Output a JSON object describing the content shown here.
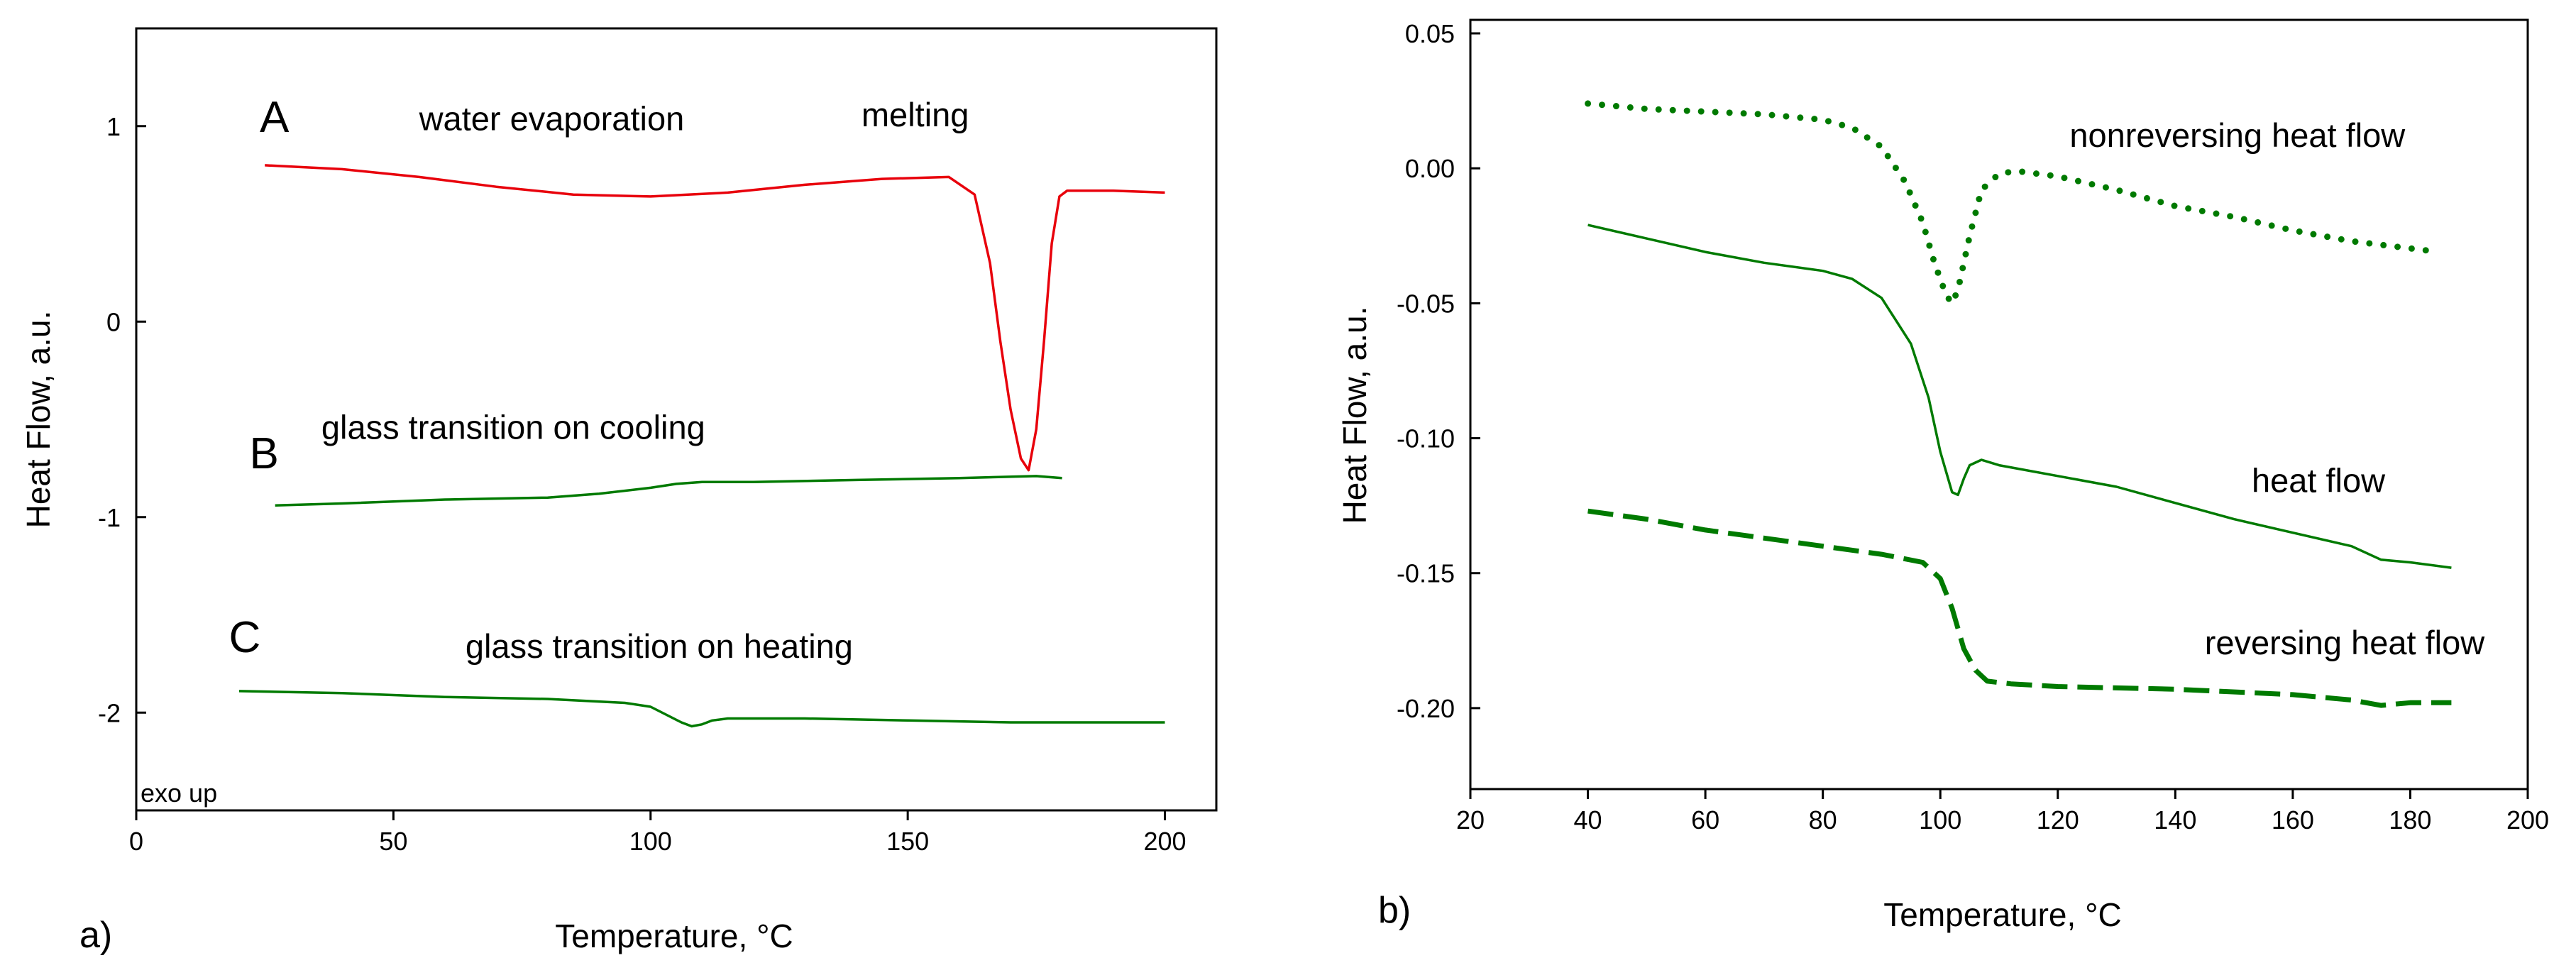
{
  "chart_data": [
    {
      "id": "a",
      "type": "line",
      "panel_label": "a)",
      "xlabel": "Temperature, °C",
      "ylabel": "Heat Flow, a.u.",
      "xlim": [
        0,
        210
      ],
      "ylim": [
        -2.5,
        1.5
      ],
      "xticks": [
        0,
        50,
        100,
        150,
        200
      ],
      "yticks": [
        1,
        0,
        -1,
        -2
      ],
      "ytick_labels": [
        "1",
        "0",
        "-1",
        "-2"
      ],
      "corner_note": "exo up",
      "series": [
        {
          "name": "A",
          "color": "#e8000b",
          "x": [
            25,
            40,
            55,
            70,
            85,
            100,
            115,
            130,
            145,
            158,
            163,
            166,
            168,
            170,
            172,
            173.5,
            175,
            176.5,
            178,
            179.5,
            181,
            190,
            200
          ],
          "y": [
            0.8,
            0.78,
            0.74,
            0.69,
            0.65,
            0.64,
            0.66,
            0.7,
            0.73,
            0.74,
            0.65,
            0.3,
            -0.1,
            -0.45,
            -0.7,
            -0.76,
            -0.55,
            -0.1,
            0.4,
            0.64,
            0.67,
            0.67,
            0.66
          ]
        },
        {
          "name": "B",
          "color": "#007a00",
          "x": [
            27,
            40,
            60,
            80,
            90,
            100,
            105,
            110,
            120,
            140,
            160,
            175,
            180
          ],
          "y": [
            -0.94,
            -0.93,
            -0.91,
            -0.9,
            -0.88,
            -0.85,
            -0.83,
            -0.82,
            -0.82,
            -0.81,
            -0.8,
            -0.79,
            -0.8
          ]
        },
        {
          "name": "C",
          "color": "#007a00",
          "x": [
            20,
            40,
            60,
            80,
            95,
            100,
            103,
            106,
            108,
            110,
            112,
            115,
            130,
            150,
            170,
            185,
            200
          ],
          "y": [
            -1.89,
            -1.9,
            -1.92,
            -1.93,
            -1.95,
            -1.97,
            -2.01,
            -2.05,
            -2.07,
            -2.06,
            -2.04,
            -2.03,
            -2.03,
            -2.04,
            -2.05,
            -2.05,
            -2.05
          ]
        }
      ],
      "annotations": [
        {
          "text": "A",
          "x": 24,
          "y": 0.97,
          "kind": "letter"
        },
        {
          "text": "B",
          "x": 22,
          "y": -0.75,
          "kind": "letter"
        },
        {
          "text": "C",
          "x": 18,
          "y": -1.69,
          "kind": "letter"
        },
        {
          "text": "water evaporation",
          "x": 55,
          "y": 0.98,
          "kind": "label"
        },
        {
          "text": "melting",
          "x": 141,
          "y": 1.0,
          "kind": "label"
        },
        {
          "text": "glass transition on cooling",
          "x": 36,
          "y": -0.6,
          "kind": "label"
        },
        {
          "text": "glass transition on heating",
          "x": 64,
          "y": -1.72,
          "kind": "label"
        }
      ]
    },
    {
      "id": "b",
      "type": "line",
      "panel_label": "b)",
      "xlabel": "Temperature, °C",
      "ylabel": "Heat Flow, a.u.",
      "xlim": [
        20,
        200
      ],
      "ylim": [
        -0.23,
        0.055
      ],
      "xticks": [
        20,
        40,
        60,
        80,
        100,
        120,
        140,
        160,
        180,
        200
      ],
      "yticks": [
        0.05,
        0.0,
        -0.05,
        -0.1,
        -0.15,
        -0.2
      ],
      "ytick_labels": [
        "0.05",
        "0.00",
        "-0.05",
        "-0.10",
        "-0.15",
        "-0.20"
      ],
      "series": [
        {
          "name": "nonreversing heat flow",
          "style": "dotted",
          "color": "#007a00",
          "x": [
            40,
            50,
            60,
            70,
            80,
            85,
            90,
            94,
            97,
            99,
            101,
            102,
            103,
            105,
            107,
            110,
            113,
            120,
            130,
            140,
            150,
            160,
            170,
            185
          ],
          "y": [
            0.024,
            0.022,
            0.021,
            0.02,
            0.018,
            0.015,
            0.008,
            -0.005,
            -0.02,
            -0.035,
            -0.047,
            -0.05,
            -0.045,
            -0.025,
            -0.008,
            -0.002,
            -0.001,
            -0.003,
            -0.008,
            -0.014,
            -0.018,
            -0.023,
            -0.027,
            -0.031
          ]
        },
        {
          "name": "heat flow",
          "style": "solid",
          "color": "#007a00",
          "x": [
            40,
            50,
            60,
            70,
            80,
            85,
            90,
            95,
            98,
            100,
            102,
            103,
            104,
            105,
            107,
            110,
            120,
            130,
            140,
            150,
            160,
            170,
            175,
            180,
            187
          ],
          "y": [
            -0.021,
            -0.026,
            -0.031,
            -0.035,
            -0.038,
            -0.041,
            -0.048,
            -0.065,
            -0.085,
            -0.105,
            -0.12,
            -0.121,
            -0.115,
            -0.11,
            -0.108,
            -0.11,
            -0.114,
            -0.118,
            -0.124,
            -0.13,
            -0.135,
            -0.14,
            -0.145,
            -0.146,
            -0.148
          ]
        },
        {
          "name": "reversing heat flow",
          "style": "dashed",
          "color": "#007a00",
          "x": [
            40,
            50,
            60,
            70,
            80,
            90,
            97,
            100,
            102,
            104,
            106,
            108,
            112,
            120,
            140,
            160,
            170,
            175,
            180,
            187
          ],
          "y": [
            -0.127,
            -0.13,
            -0.134,
            -0.137,
            -0.14,
            -0.143,
            -0.146,
            -0.152,
            -0.163,
            -0.178,
            -0.186,
            -0.19,
            -0.191,
            -0.192,
            -0.193,
            -0.195,
            -0.197,
            -0.199,
            -0.198,
            -0.198
          ]
        }
      ],
      "annotations": [
        {
          "text": "nonreversing heat flow",
          "x": 122,
          "y": 0.008
        },
        {
          "text": "heat flow",
          "x": 153,
          "y": -0.12
        },
        {
          "text": "reversing heat flow",
          "x": 145,
          "y": -0.18
        }
      ]
    }
  ]
}
